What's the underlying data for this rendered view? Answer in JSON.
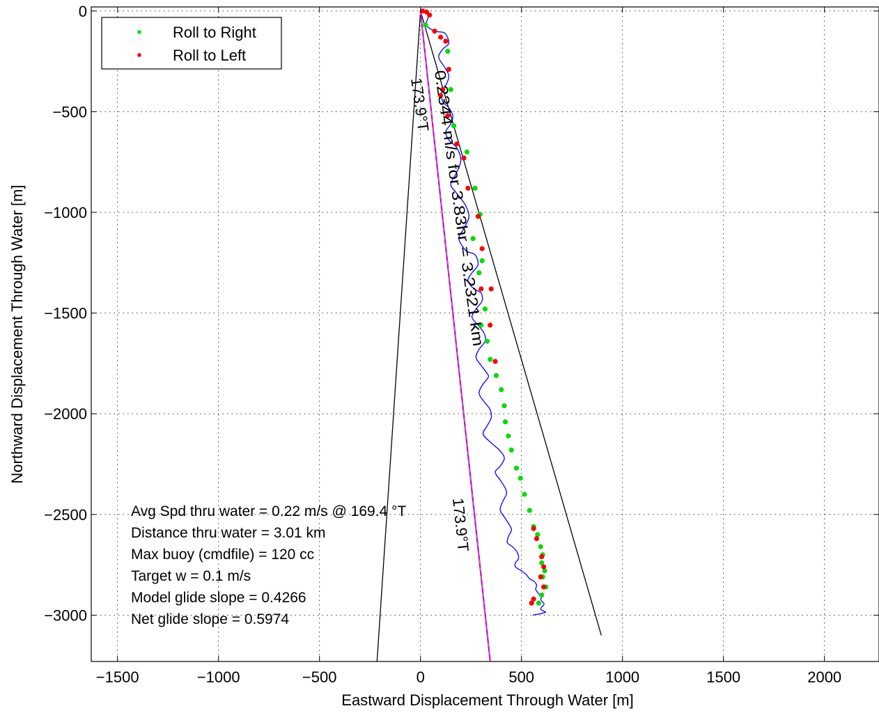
{
  "chart_data": {
    "type": "line",
    "xlabel": "Eastward Displacement Through Water [m]",
    "ylabel": "Northward Displacement Through Water [m]",
    "xlim": [
      -1630,
      2270
    ],
    "ylim": [
      -3230,
      20
    ],
    "xticks": [
      -1500,
      -1000,
      -500,
      0,
      500,
      1000,
      1500,
      2000
    ],
    "xtick_labels": [
      "−1500",
      "−1000",
      "−500",
      "0",
      "500",
      "1000",
      "1500",
      "2000"
    ],
    "yticks": [
      0,
      -500,
      -1000,
      -1500,
      -2000,
      -2500,
      -3000
    ],
    "ytick_labels": [
      "0",
      "−500",
      "−1000",
      "−1500",
      "−2000",
      "−2500",
      "−3000"
    ],
    "grid": true,
    "legend": {
      "placement": "top-left",
      "entries": [
        {
          "label": "Roll to Right",
          "color": "#00dd00"
        },
        {
          "label": "Roll to Left",
          "color": "#ff0000"
        }
      ]
    },
    "colors": {
      "track": "#0000ff",
      "roll_right": "#00dd00",
      "roll_left": "#ff0000",
      "heading_line": "#000000",
      "mean_line": "#cc00cc"
    },
    "annotations": {
      "rot_upper_heading": "173.9°T",
      "rot_speed": "0.2344 m/s for 3.83hr = 3.2321 km",
      "rot_lower_heading": "173.9°T",
      "lines": [
        "Avg Spd thru water =  0.22 m/s @ 169.4    °T",
        "Distance thru water =  3.01 km",
        "Max buoy (cmdfile) = 120 cc",
        "Target w = 0.1 m/s",
        "Model glide slope = 0.4266",
        "Net glide slope = 0.5974"
      ]
    },
    "series": [
      {
        "name": "track",
        "x": [
          0,
          20,
          40,
          30,
          70,
          120,
          140,
          110,
          90,
          120,
          140,
          130,
          105,
          110,
          140,
          160,
          150,
          125,
          140,
          180,
          200,
          180,
          150,
          175,
          220,
          240,
          215,
          190,
          225,
          270,
          285,
          255,
          235,
          265,
          300,
          305,
          275,
          255,
          285,
          315,
          320,
          290,
          275,
          300,
          330,
          335,
          305,
          290,
          315,
          345,
          350,
          330,
          310,
          345,
          390,
          415,
          395,
          370,
          395,
          420,
          425,
          405,
          395,
          420,
          445,
          450,
          435,
          430,
          455,
          480,
          485,
          470,
          470,
          500,
          525,
          540,
          560,
          575,
          570,
          575,
          590,
          600,
          595,
          600,
          610,
          610,
          600,
          595,
          610,
          620,
          605,
          585,
          570,
          555
        ],
        "y": [
          0,
          0,
          -20,
          -70,
          -100,
          -110,
          -160,
          -190,
          -230,
          -280,
          -320,
          -360,
          -400,
          -450,
          -480,
          -520,
          -560,
          -600,
          -640,
          -680,
          -740,
          -800,
          -860,
          -900,
          -960,
          -1020,
          -1080,
          -1130,
          -1190,
          -1210,
          -1260,
          -1300,
          -1340,
          -1380,
          -1400,
          -1440,
          -1480,
          -1520,
          -1560,
          -1600,
          -1640,
          -1680,
          -1720,
          -1760,
          -1800,
          -1820,
          -1860,
          -1900,
          -1940,
          -1980,
          -2020,
          -2060,
          -2100,
          -2140,
          -2180,
          -2220,
          -2260,
          -2290,
          -2330,
          -2370,
          -2400,
          -2440,
          -2480,
          -2520,
          -2560,
          -2580,
          -2610,
          -2640,
          -2660,
          -2690,
          -2720,
          -2740,
          -2760,
          -2780,
          -2800,
          -2820,
          -2830,
          -2850,
          -2870,
          -2880,
          -2900,
          -2910,
          -2920,
          -2930,
          -2940,
          -2950,
          -2960,
          -2970,
          -2980,
          -2985,
          -2990,
          -2995,
          -2997,
          -3000
        ]
      },
      {
        "name": "Roll to Right",
        "x": [
          25,
          135,
          150,
          165,
          230,
          270,
          295,
          260,
          305,
          290,
          320,
          300,
          330,
          345,
          375,
          400,
          415,
          420,
          435,
          450,
          475,
          495,
          515,
          540,
          560,
          580,
          595,
          605,
          600,
          615,
          605,
          620,
          600,
          585
        ],
        "y": [
          -70,
          -200,
          -390,
          -570,
          -700,
          -880,
          -1010,
          -1130,
          -1240,
          -1300,
          -1480,
          -1560,
          -1640,
          -1730,
          -1810,
          -1880,
          -1960,
          -2040,
          -2110,
          -2180,
          -2270,
          -2320,
          -2400,
          -2480,
          -2560,
          -2600,
          -2660,
          -2700,
          -2740,
          -2780,
          -2810,
          -2860,
          -2900,
          -2940
        ]
      },
      {
        "name": "Roll to Left",
        "x": [
          10,
          30,
          45,
          70,
          100,
          125,
          140,
          110,
          100,
          135,
          180,
          215,
          235,
          285,
          305,
          300,
          350,
          345,
          370,
          560,
          575,
          600,
          610,
          595,
          610,
          560,
          550
        ],
        "y": [
          0,
          -5,
          -20,
          -100,
          -130,
          -150,
          -290,
          -390,
          -420,
          -520,
          -660,
          -730,
          -880,
          -1020,
          -1180,
          -1380,
          -1380,
          -1560,
          -1740,
          -2570,
          -2620,
          -2710,
          -2760,
          -2810,
          -2860,
          -2920,
          -2940
        ]
      },
      {
        "name": "heading_line_left",
        "x": [
          0,
          -215
        ],
        "y": [
          0,
          -3230
        ]
      },
      {
        "name": "heading_line_right",
        "x": [
          0,
          895
        ],
        "y": [
          0,
          -3100
        ]
      },
      {
        "name": "heading_line_mean",
        "x": [
          0,
          345
        ],
        "y": [
          0,
          -3230
        ]
      }
    ]
  }
}
